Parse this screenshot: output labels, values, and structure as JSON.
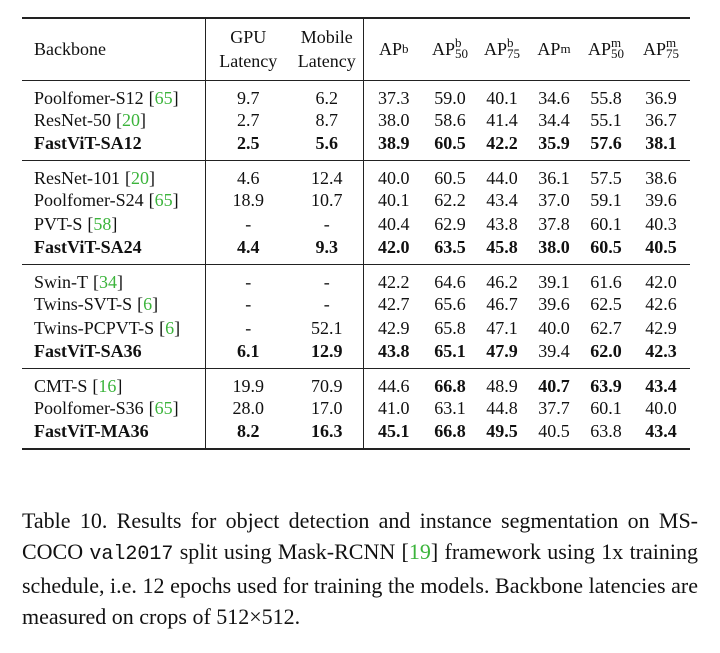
{
  "table": {
    "cite_open": "[",
    "cite_close": "]",
    "columns": [
      {
        "text": "Backbone"
      },
      {
        "line1": "GPU",
        "line2": "Latency"
      },
      {
        "line1": "Mobile",
        "line2": "Latency"
      },
      {
        "base": "AP",
        "sup": "b"
      },
      {
        "base": "AP",
        "sup": "b",
        "sub": "50"
      },
      {
        "base": "AP",
        "sup": "b",
        "sub": "75"
      },
      {
        "base": "AP",
        "sup": "m"
      },
      {
        "base": "AP",
        "sup": "m",
        "sub": "50"
      },
      {
        "base": "AP",
        "sup": "m",
        "sub": "75"
      }
    ],
    "groups": [
      [
        {
          "backbone": "Poolfomer-S12",
          "ref": "65",
          "cells": [
            "9.7",
            "6.2",
            "37.3",
            "59.0",
            "40.1",
            "34.6",
            "55.8",
            "36.9"
          ]
        },
        {
          "backbone": "ResNet-50",
          "ref": "20",
          "cells": [
            "2.7",
            "8.7",
            "38.0",
            "58.6",
            "41.4",
            "34.4",
            "55.1",
            "36.7"
          ]
        },
        {
          "backbone": "FastViT-SA12",
          "bold_name": true,
          "bold": [
            0,
            1,
            2,
            3,
            4,
            5,
            6,
            7
          ],
          "cells": [
            "2.5",
            "5.6",
            "38.9",
            "60.5",
            "42.2",
            "35.9",
            "57.6",
            "38.1"
          ]
        }
      ],
      [
        {
          "backbone": "ResNet-101",
          "ref": "20",
          "cells": [
            "4.6",
            "12.4",
            "40.0",
            "60.5",
            "44.0",
            "36.1",
            "57.5",
            "38.6"
          ]
        },
        {
          "backbone": "Poolfomer-S24",
          "ref": "65",
          "cells": [
            "18.9",
            "10.7",
            "40.1",
            "62.2",
            "43.4",
            "37.0",
            "59.1",
            "39.6"
          ]
        },
        {
          "backbone": "PVT-S",
          "ref": "58",
          "cells": [
            "-",
            "-",
            "40.4",
            "62.9",
            "43.8",
            "37.8",
            "60.1",
            "40.3"
          ]
        },
        {
          "backbone": "FastViT-SA24",
          "bold_name": true,
          "bold": [
            0,
            1,
            2,
            3,
            4,
            5,
            6,
            7
          ],
          "cells": [
            "4.4",
            "9.3",
            "42.0",
            "63.5",
            "45.8",
            "38.0",
            "60.5",
            "40.5"
          ]
        }
      ],
      [
        {
          "backbone": "Swin-T",
          "ref": "34",
          "cells": [
            "-",
            "-",
            "42.2",
            "64.6",
            "46.2",
            "39.1",
            "61.6",
            "42.0"
          ]
        },
        {
          "backbone": "Twins-SVT-S",
          "ref": "6",
          "cells": [
            "-",
            "-",
            "42.7",
            "65.6",
            "46.7",
            "39.6",
            "62.5",
            "42.6"
          ]
        },
        {
          "backbone": "Twins-PCPVT-S",
          "ref": "6",
          "cells": [
            "-",
            "52.1",
            "42.9",
            "65.8",
            "47.1",
            "40.0",
            "62.7",
            "42.9"
          ]
        },
        {
          "backbone": "FastViT-SA36",
          "bold_name": true,
          "bold": [
            0,
            1,
            2,
            3,
            4,
            6,
            7
          ],
          "cells": [
            "6.1",
            "12.9",
            "43.8",
            "65.1",
            "47.9",
            "39.4",
            "62.0",
            "42.3"
          ]
        }
      ],
      [
        {
          "backbone": "CMT-S",
          "ref": "16",
          "bold": [
            3,
            5,
            6,
            7
          ],
          "cells": [
            "19.9",
            "70.9",
            "44.6",
            "66.8",
            "48.9",
            "40.7",
            "63.9",
            "43.4"
          ]
        },
        {
          "backbone": "Poolfomer-S36",
          "ref": "65",
          "cells": [
            "28.0",
            "17.0",
            "41.0",
            "63.1",
            "44.8",
            "37.7",
            "60.1",
            "40.0"
          ]
        },
        {
          "backbone": "FastViT-MA36",
          "bold_name": true,
          "bold": [
            0,
            1,
            2,
            3,
            4,
            7
          ],
          "cells": [
            "8.2",
            "16.3",
            "45.1",
            "66.8",
            "49.5",
            "40.5",
            "63.8",
            "43.4"
          ]
        }
      ]
    ]
  },
  "caption": {
    "label": "Table 10.",
    "text1": "Results for object detection and instance segmentation on MS-COCO",
    "code": "val2017",
    "text2": "split using Mask-RCNN",
    "ref": "19",
    "text3": "framework using 1x training schedule, i.e.  12 epochs used for training the models. Backbone latencies are measured on crops of 512×512."
  }
}
